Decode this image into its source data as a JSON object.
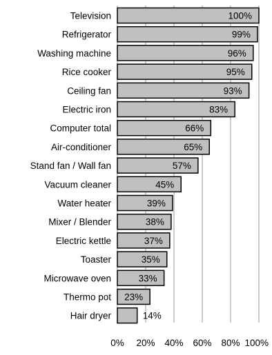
{
  "chart_data": {
    "type": "bar",
    "orientation": "horizontal",
    "title": "",
    "xlabel": "",
    "ylabel": "",
    "categories": [
      "Television",
      "Refrigerator",
      "Washing machine",
      "Rice cooker",
      "Ceiling fan",
      "Electric iron",
      "Computer total",
      "Air-conditioner",
      "Stand fan / Wall fan",
      "Vacuum cleaner",
      "Water heater",
      "Mixer / Blender",
      "Electric kettle",
      "Toaster",
      "Microwave oven",
      "Thermo pot",
      "Hair dryer"
    ],
    "values": [
      100,
      99,
      96,
      95,
      93,
      83,
      66,
      65,
      57,
      45,
      39,
      38,
      37,
      35,
      33,
      23,
      14
    ],
    "value_labels": [
      "100%",
      "99%",
      "96%",
      "95%",
      "93%",
      "83%",
      "66%",
      "65%",
      "57%",
      "45%",
      "39%",
      "38%",
      "37%",
      "35%",
      "33%",
      "23%",
      "14%"
    ],
    "xlim": [
      0,
      100
    ],
    "x_ticks": [
      0,
      20,
      40,
      60,
      80,
      100
    ],
    "x_tick_labels": [
      "0%",
      "20%",
      "40%",
      "60%",
      "80%",
      "100%"
    ],
    "grid": "vertical",
    "legend": "none",
    "bar_color": "#c0c0c0",
    "bar_edge_color": "#000000",
    "grid_color": "#999999"
  }
}
